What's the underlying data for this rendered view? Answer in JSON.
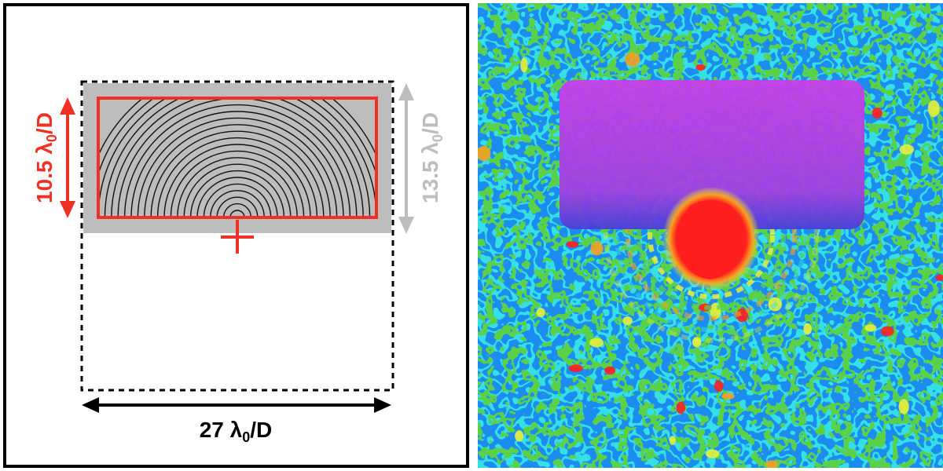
{
  "left_panel": {
    "red_dimension": {
      "base": "10.5 λ",
      "sub": "0",
      "tail": "/D"
    },
    "gray_dimension": {
      "base": "13.5 λ",
      "sub": "0",
      "tail": "/D"
    },
    "black_dimension": {
      "base": "27 λ",
      "sub": "0",
      "tail": "/D"
    },
    "colors": {
      "red": "#ee3124",
      "gray": "#bdbdbd",
      "black": "#000000"
    }
  },
  "right_panel": {
    "colormap": [
      "#3a3ad6",
      "#1f8cf0",
      "#34e0e6",
      "#5ad14a",
      "#e8ef3a",
      "#f6a020",
      "#ff1e1e"
    ],
    "hole_color": "#d23fe6",
    "core_color": "#ff2a1a"
  }
}
